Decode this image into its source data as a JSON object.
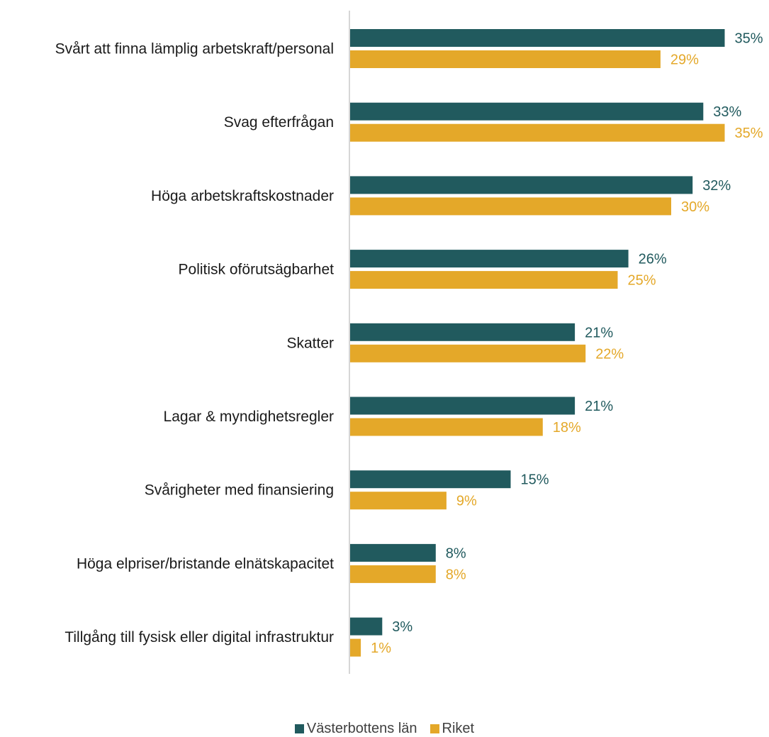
{
  "chart_data": {
    "type": "bar",
    "orientation": "horizontal",
    "categories": [
      "Svårt att finna lämplig arbetskraft/personal",
      "Svag efterfrågan",
      "Höga arbetskraftskostnader",
      "Politisk oförutsägbarhet",
      "Skatter",
      "Lagar & myndighetsregler",
      "Svårigheter med finansiering",
      "Höga elpriser/bristande elnätskapacitet",
      "Tillgång till fysisk eller digital infrastruktur"
    ],
    "series": [
      {
        "name": "Västerbottens län",
        "color": "#215a5e",
        "values": [
          35,
          33,
          32,
          26,
          21,
          21,
          15,
          8,
          3
        ],
        "labels": [
          "35%",
          "33%",
          "32%",
          "26%",
          "21%",
          "21%",
          "15%",
          "8%",
          "3%"
        ]
      },
      {
        "name": "Riket",
        "color": "#e4a829",
        "values": [
          29,
          35,
          30,
          25,
          22,
          18,
          9,
          8,
          1
        ],
        "labels": [
          "29%",
          "35%",
          "30%",
          "25%",
          "22%",
          "18%",
          "9%",
          "8%",
          "1%"
        ]
      }
    ],
    "xlim": [
      0,
      35
    ],
    "grid": false,
    "legend_position": "bottom"
  }
}
